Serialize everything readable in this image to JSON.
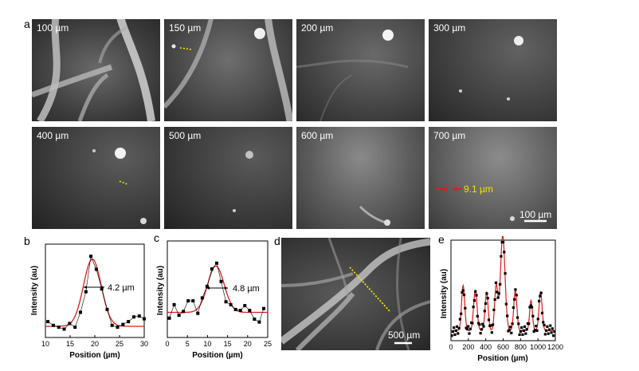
{
  "figure": {
    "panel_letters": [
      "a",
      "b",
      "c",
      "d",
      "e"
    ]
  },
  "panel_a": {
    "tiles": [
      {
        "depth": "100 µm"
      },
      {
        "depth": "150 µm"
      },
      {
        "depth": "200 µm"
      },
      {
        "depth": "300 µm"
      },
      {
        "depth": "400 µm"
      },
      {
        "depth": "500 µm"
      },
      {
        "depth": "600 µm"
      },
      {
        "depth": "700 µm"
      }
    ],
    "annotation": "9.1 µm",
    "scalebar": "100 µm",
    "colors": {
      "dotted_line": "#f2e500",
      "arrow": "#e01b1b",
      "annotation_text": "#f2e500"
    }
  },
  "panel_d": {
    "scalebar": "500 µm"
  },
  "chart_data": [
    {
      "panel": "b",
      "type": "scatter",
      "xlabel": "Position (µm)",
      "ylabel": "Intensity (au)",
      "xlim": [
        10,
        30
      ],
      "xticks": [
        "10",
        "15",
        "20",
        "25",
        "30"
      ],
      "annotation": "4.2 µm",
      "series": [
        {
          "points": [
            [
              10.5,
              0.17
            ],
            [
              11.6,
              0.13
            ],
            [
              12.7,
              0.11
            ],
            [
              13.8,
              0.09
            ],
            [
              14.9,
              0.15
            ],
            [
              16.0,
              0.11
            ],
            [
              17.1,
              0.27
            ],
            [
              18.2,
              0.49
            ],
            [
              19.2,
              0.87
            ],
            [
              20.3,
              0.73
            ],
            [
              21.4,
              0.52
            ],
            [
              22.5,
              0.3
            ],
            [
              23.5,
              0.13
            ],
            [
              24.6,
              0.11
            ],
            [
              25.7,
              0.14
            ],
            [
              26.8,
              0.17
            ],
            [
              27.9,
              0.22
            ],
            [
              29.0,
              0.23
            ],
            [
              30.0,
              0.2
            ]
          ]
        },
        {
          "fit": "gaussian",
          "baseline": 0.12,
          "amplitude": 0.72,
          "center": 19.5,
          "sigma": 1.8
        }
      ],
      "colors": {
        "points": "#000000",
        "fit": "#e01b1b"
      }
    },
    {
      "panel": "c",
      "type": "scatter",
      "xlabel": "Position (µm)",
      "ylabel": "Intensity (au)",
      "xlim": [
        0,
        25
      ],
      "xticks": [
        "0",
        "5",
        "10",
        "15",
        "20",
        "25"
      ],
      "annotation": "4.8 µm",
      "series": [
        {
          "points": [
            [
              0.5,
              0.2
            ],
            [
              1.7,
              0.34
            ],
            [
              2.9,
              0.23
            ],
            [
              4.0,
              0.27
            ],
            [
              5.2,
              0.38
            ],
            [
              6.4,
              0.38
            ],
            [
              7.6,
              0.25
            ],
            [
              8.7,
              0.41
            ],
            [
              9.9,
              0.53
            ],
            [
              11.1,
              0.71
            ],
            [
              12.3,
              0.77
            ],
            [
              13.4,
              0.58
            ],
            [
              14.6,
              0.37
            ],
            [
              15.8,
              0.34
            ],
            [
              17.0,
              0.29
            ],
            [
              18.2,
              0.28
            ],
            [
              19.3,
              0.33
            ],
            [
              20.5,
              0.28
            ],
            [
              21.7,
              0.19
            ],
            [
              22.9,
              0.16
            ],
            [
              24.0,
              0.3
            ]
          ]
        },
        {
          "fit": "gaussian",
          "baseline": 0.26,
          "amplitude": 0.48,
          "center": 12.1,
          "sigma": 2.05
        }
      ],
      "colors": {
        "points": "#000000",
        "fit": "#e01b1b"
      }
    },
    {
      "panel": "e",
      "type": "line",
      "xlabel": "Position (µm)",
      "ylabel": "Intensity (au)",
      "xlim": [
        0,
        1200
      ],
      "xticks": [
        "0",
        "200",
        "400",
        "600",
        "800",
        "1000",
        "1200"
      ],
      "xtick_values": [
        0,
        200,
        400,
        600,
        800,
        1000,
        1200
      ],
      "series": [
        {
          "peaks": [
            {
              "x": 140,
              "h": 0.45,
              "w": 18
            },
            {
              "x": 280,
              "h": 0.4,
              "w": 20
            },
            {
              "x": 410,
              "h": 0.38,
              "w": 18
            },
            {
              "x": 520,
              "h": 0.45,
              "w": 18
            },
            {
              "x": 595,
              "h": 0.95,
              "w": 26
            },
            {
              "x": 740,
              "h": 0.4,
              "w": 18
            },
            {
              "x": 920,
              "h": 0.3,
              "w": 16
            },
            {
              "x": 1030,
              "h": 0.38,
              "w": 18
            }
          ],
          "baseline": 0.1
        }
      ],
      "colors": {
        "points": "#000000",
        "fit": "#e01b1b"
      }
    }
  ]
}
